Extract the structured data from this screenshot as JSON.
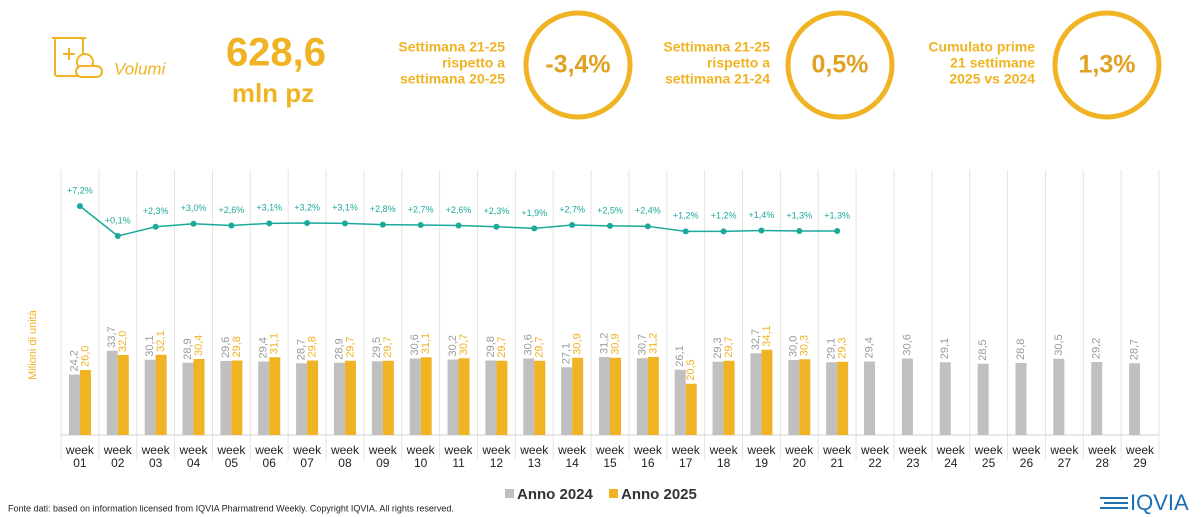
{
  "header": {
    "section": "Volumi",
    "total": "628,6",
    "unit": "mln pz"
  },
  "kpis": [
    {
      "label_lines": [
        "Settimana 21-25",
        "rispetto a",
        "settimana 20-25"
      ],
      "value": "-3,4%"
    },
    {
      "label_lines": [
        "Settimana 21-25",
        "rispetto a",
        "settimana 21-24"
      ],
      "value": "0,5%"
    },
    {
      "label_lines": [
        "Cumulato prime",
        "21 settimane",
        "2025 vs 2024"
      ],
      "value": "1,3%"
    }
  ],
  "chart_data": {
    "type": "bar",
    "y_label": "Milioni di unità",
    "categories": [
      "week 01",
      "week 02",
      "week 03",
      "week 04",
      "week 05",
      "week 06",
      "week 07",
      "week 08",
      "week 09",
      "week 10",
      "week 11",
      "week 12",
      "week 13",
      "week 14",
      "week 15",
      "week 16",
      "week 17",
      "week 18",
      "week 19",
      "week 20",
      "week 21",
      "week 22",
      "week 23",
      "week 24",
      "week 25",
      "week 26",
      "week 27",
      "week 28",
      "week 29"
    ],
    "ylim": [
      0,
      42
    ],
    "y2lim": [
      -5.6,
      13.4
    ],
    "series": [
      {
        "name": "Anno 2024",
        "color": "#c0c0c0",
        "values": [
          24.2,
          33.7,
          30.1,
          28.9,
          29.6,
          29.4,
          28.7,
          28.9,
          29.5,
          30.6,
          30.2,
          29.8,
          30.6,
          27.1,
          31.2,
          30.7,
          26.1,
          29.3,
          32.7,
          30.0,
          29.1,
          29.4,
          30.6,
          29.1,
          28.5,
          28.8,
          30.5,
          29.2,
          28.7
        ],
        "value_labels": [
          "24,2",
          "33,7",
          "30,1",
          "28,9",
          "29,6",
          "29,4",
          "28,7",
          "28,9",
          "29,5",
          "30,6",
          "30,2",
          "29,8",
          "30,6",
          "27,1",
          "31,2",
          "30,7",
          "26,1",
          "29,3",
          "32,7",
          "30,0",
          "29,1",
          "29,4",
          "30,6",
          "29,1",
          "28,5",
          "28,8",
          "30,5",
          "29,2",
          "28,7"
        ]
      },
      {
        "name": "Anno 2025",
        "color": "#f0b323",
        "values": [
          26.0,
          32.0,
          32.1,
          30.4,
          29.8,
          31.1,
          29.8,
          29.7,
          29.7,
          31.1,
          30.7,
          29.7,
          29.7,
          30.9,
          30.9,
          31.2,
          20.5,
          29.7,
          34.1,
          30.3,
          29.3,
          null,
          null,
          null,
          null,
          null,
          null,
          null,
          null
        ],
        "value_labels": [
          "26,0",
          "32,0",
          "32,1",
          "30,4",
          "29,8",
          "31,1",
          "29,8",
          "29,7",
          "29,7",
          "31,1",
          "30,7",
          "29,7",
          "29,7",
          "30,9",
          "30,9",
          "31,2",
          "20,5",
          "29,7",
          "34,1",
          "30,3",
          "29,3",
          null,
          null,
          null,
          null,
          null,
          null,
          null,
          null
        ]
      },
      {
        "type": "line",
        "axis": "y2",
        "color": "#1aa99a",
        "values": [
          7.2,
          0.1,
          2.3,
          3.0,
          2.6,
          3.1,
          3.2,
          3.1,
          2.8,
          2.7,
          2.6,
          2.3,
          1.9,
          2.7,
          2.5,
          2.4,
          1.2,
          1.2,
          1.4,
          1.3,
          1.3,
          null,
          null,
          null,
          null,
          null,
          null,
          null,
          null
        ],
        "value_labels": [
          "+7,2%",
          "+0,1%",
          "+2,3%",
          "+3,0%",
          "+2,6%",
          "+3,1%",
          "+3,2%",
          "+3,1%",
          "+2,8%",
          "+2,7%",
          "+2,6%",
          "+2,3%",
          "+1,9%",
          "+2,7%",
          "+2,5%",
          "+2,4%",
          "+1,2%",
          "+1,2%",
          "+1,4%",
          "+1,3%",
          "+1,3%",
          null,
          null,
          null,
          null,
          null,
          null,
          null,
          null
        ]
      }
    ]
  },
  "footer": {
    "source": "Fonte dati: based on information licensed from IQVIA Pharmatrend Weekly. Copyright IQVIA. All rights reserved.",
    "logo": "IQVIA"
  }
}
